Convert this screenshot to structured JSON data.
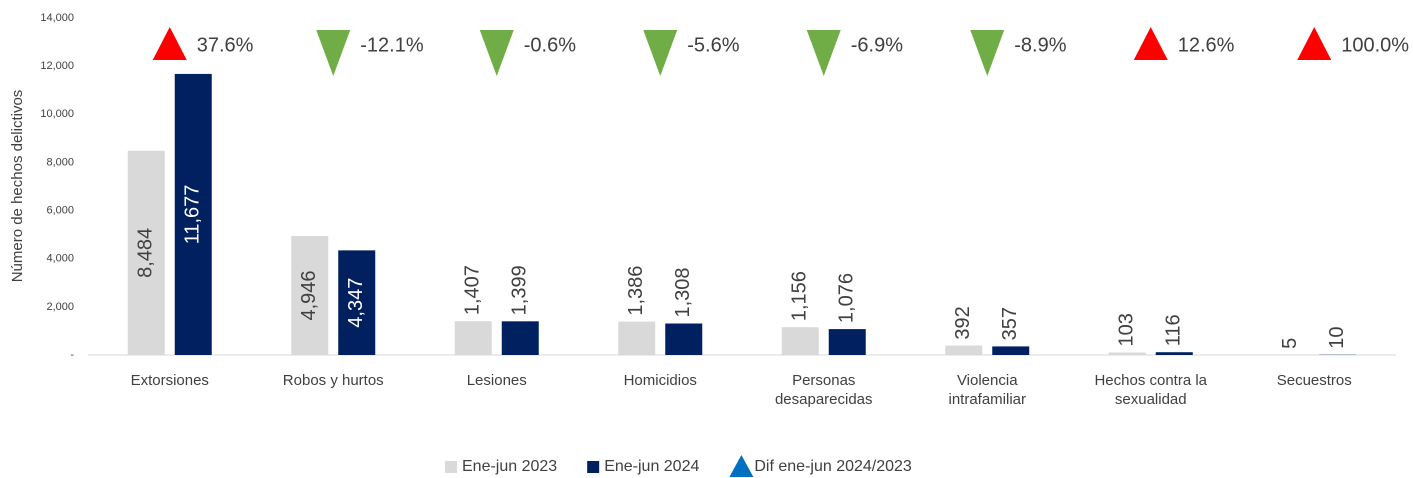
{
  "chart_data": {
    "type": "bar",
    "ylabel": "Número de hechos delictivos",
    "categories": [
      "Extorsiones",
      "Robos y hurtos",
      "Lesiones",
      "Homicidios",
      "Personas desaparecidas",
      "Violencia intrafamiliar",
      "Hechos contra la sexualidad",
      "Secuestros"
    ],
    "series": [
      {
        "name": "Ene-jun 2023",
        "color": "#d9d9d9",
        "values": [
          8484,
          4946,
          1407,
          1386,
          1156,
          392,
          103,
          5
        ],
        "value_labels": [
          "8,484",
          "4,946",
          "1,407",
          "1,386",
          "1,156",
          "392",
          "103",
          "5"
        ]
      },
      {
        "name": "Ene-jun 2024",
        "color": "#002060",
        "values": [
          11677,
          4347,
          1399,
          1308,
          1076,
          357,
          116,
          10
        ],
        "value_labels": [
          "11,677",
          "4,347",
          "1,399",
          "1,308",
          "1,076",
          "357",
          "116",
          "10"
        ]
      }
    ],
    "change": {
      "name": "Dif ene-jun 2024/2023",
      "color": "#0070c0",
      "up_color": "#ff0000",
      "down_color": "#70ad47",
      "values": [
        37.6,
        -12.1,
        -0.6,
        -5.6,
        -6.9,
        -8.9,
        12.6,
        100.0
      ],
      "value_labels": [
        "37.6%",
        "-12.1%",
        "-0.6%",
        "-5.6%",
        "-6.9%",
        "-8.9%",
        "12.6%",
        "100.0%"
      ]
    },
    "ylim": [
      0,
      14000
    ],
    "yticks": [
      {
        "value": 0,
        "label": "-"
      },
      {
        "value": 2000,
        "label": "2,000"
      },
      {
        "value": 4000,
        "label": "4,000"
      },
      {
        "value": 6000,
        "label": "6,000"
      },
      {
        "value": 8000,
        "label": "8,000"
      },
      {
        "value": 10000,
        "label": "10,000"
      },
      {
        "value": 12000,
        "label": "12,000"
      },
      {
        "value": 14000,
        "label": "14,000"
      }
    ],
    "grid": false,
    "legend": "bottom"
  }
}
